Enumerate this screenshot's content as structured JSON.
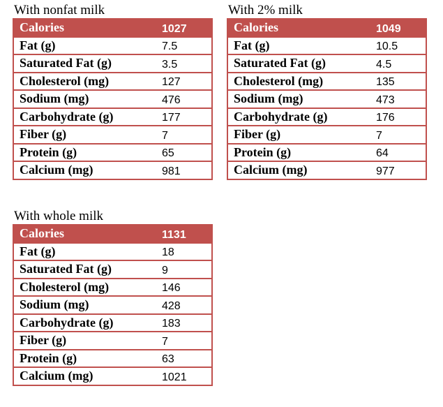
{
  "tables": [
    {
      "title": "With nonfat milk",
      "header": [
        "Calories",
        1027
      ],
      "rows": [
        [
          "Fat (g)",
          7.5
        ],
        [
          "Saturated Fat (g)",
          3.5
        ],
        [
          "Cholesterol (mg)",
          127
        ],
        [
          "Sodium (mg)",
          476
        ],
        [
          "Carbohydrate (g)",
          177
        ],
        [
          "Fiber (g)",
          7
        ],
        [
          "Protein (g)",
          65
        ],
        [
          "Calcium (mg)",
          981
        ]
      ]
    },
    {
      "title": "With 2% milk",
      "header": [
        "Calories",
        1049
      ],
      "rows": [
        [
          "Fat (g)",
          10.5
        ],
        [
          "Saturated Fat (g)",
          4.5
        ],
        [
          "Cholesterol (mg)",
          135
        ],
        [
          "Sodium (mg)",
          473
        ],
        [
          "Carbohydrate (g)",
          176
        ],
        [
          "Fiber (g)",
          7
        ],
        [
          "Protein (g)",
          64
        ],
        [
          "Calcium (mg)",
          977
        ]
      ]
    },
    {
      "title": "With whole milk",
      "header": [
        "Calories",
        1131
      ],
      "rows": [
        [
          "Fat (g)",
          18
        ],
        [
          "Saturated Fat (g)",
          9
        ],
        [
          "Cholesterol (mg)",
          146
        ],
        [
          "Sodium (mg)",
          428
        ],
        [
          "Carbohydrate (g)",
          183
        ],
        [
          "Fiber (g)",
          7
        ],
        [
          "Protein (g)",
          63
        ],
        [
          "Calcium (mg)",
          1021
        ]
      ]
    }
  ]
}
